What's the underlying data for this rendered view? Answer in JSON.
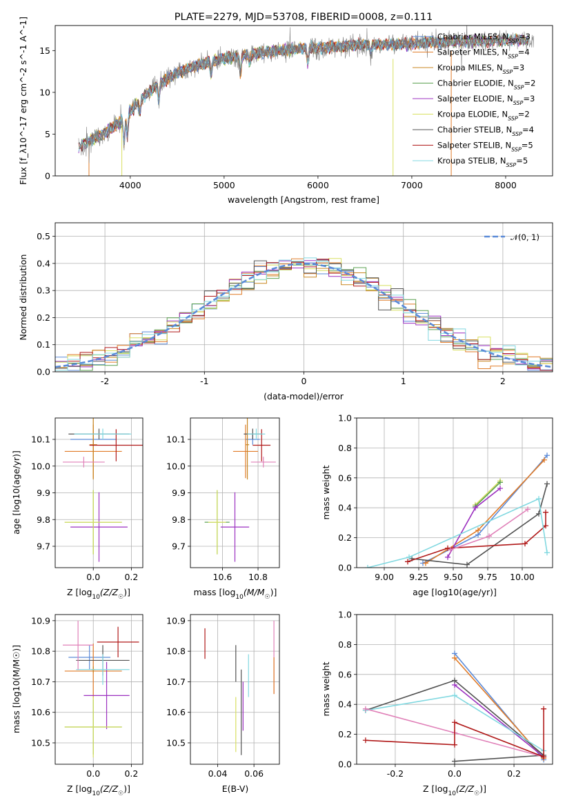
{
  "title": "PLATE=2279, MJD=53708, FIBERID=0008, z=0.111",
  "colors": {
    "chabrier_miles": "#5a8ad8",
    "salpeter_miles": "#e07a26",
    "kroupa_miles": "#c8861f",
    "chabrier_elodie": "#5aa050",
    "salpeter_elodie": "#9b2fc0",
    "kroupa_elodie": "#d8e060",
    "chabrier_stelib": "#505050",
    "salpeter_stelib": "#b01818",
    "kroupa_stelib": "#80d8e0",
    "data": "#808080",
    "pink": "#e080b8",
    "lime": "#80c030",
    "normal": "#5a8ad8"
  },
  "chart_data": [
    {
      "id": "spectrum",
      "type": "line",
      "xlabel": "wavelength [Angstrom, rest frame]",
      "ylabel": "Flux [f_λ10^-17 erg cm^-2 s^-1 A^-1]",
      "xlim": [
        3200,
        8500
      ],
      "ylim": [
        0,
        18
      ],
      "xticks": [
        4000,
        5000,
        6000,
        7000,
        8000
      ],
      "yticks": [
        0,
        5,
        10,
        15
      ],
      "legend_position": "upper-right",
      "legend": [
        {
          "label": "Chabrier MILES, N",
          "sub": "SSP",
          "suffix": "=3",
          "color": "chabrier_miles"
        },
        {
          "label": "Salpeter MILES, N",
          "sub": "SSP",
          "suffix": "=4",
          "color": "salpeter_miles"
        },
        {
          "label": "Kroupa MILES, N",
          "sub": "SSP",
          "suffix": "=3",
          "color": "kroupa_miles"
        },
        {
          "label": "Chabrier ELODIE, N",
          "sub": "SSP",
          "suffix": "=2",
          "color": "chabrier_elodie"
        },
        {
          "label": "Salpeter ELODIE, N",
          "sub": "SSP",
          "suffix": "=3",
          "color": "salpeter_elodie"
        },
        {
          "label": "Kroupa ELODIE, N",
          "sub": "SSP",
          "suffix": "=2",
          "color": "kroupa_elodie"
        },
        {
          "label": "Chabrier STELIB, N",
          "sub": "SSP",
          "suffix": "=4",
          "color": "chabrier_stelib"
        },
        {
          "label": "Salpeter STELIB, N",
          "sub": "SSP",
          "suffix": "=5",
          "color": "salpeter_stelib"
        },
        {
          "label": "Kroupa STELIB, N",
          "sub": "SSP",
          "suffix": "=5",
          "color": "kroupa_stelib"
        }
      ],
      "continuum": [
        [
          3450,
          3.5
        ],
        [
          3700,
          5.0
        ],
        [
          3900,
          6.5
        ],
        [
          4100,
          9.0
        ],
        [
          4300,
          11.0
        ],
        [
          4500,
          12.3
        ],
        [
          4700,
          13.2
        ],
        [
          4900,
          13.8
        ],
        [
          5100,
          14.3
        ],
        [
          5300,
          14.6
        ],
        [
          5500,
          14.9
        ],
        [
          5700,
          15.1
        ],
        [
          5900,
          15.3
        ],
        [
          6100,
          15.4
        ],
        [
          6300,
          15.6
        ],
        [
          6500,
          15.7
        ],
        [
          6700,
          15.7
        ],
        [
          6900,
          15.8
        ],
        [
          7100,
          15.9
        ],
        [
          7300,
          16.0
        ],
        [
          7500,
          16.1
        ],
        [
          7700,
          16.1
        ],
        [
          7900,
          16.2
        ],
        [
          8100,
          16.2
        ],
        [
          8300,
          16.3
        ]
      ]
    },
    {
      "id": "residuals",
      "type": "line",
      "xlabel": "(data-model)/error",
      "ylabel": "Normed distribution",
      "xlim": [
        -2.5,
        2.5
      ],
      "ylim": [
        0,
        0.55
      ],
      "xticks": [
        -2,
        -1,
        0,
        1,
        2
      ],
      "yticks": [
        0.0,
        0.1,
        0.2,
        0.3,
        0.4,
        0.5
      ],
      "legend_position": "upper-right",
      "normal_label": "𝒩(0, 1)",
      "bin_edges": [
        -2.5,
        2.5
      ],
      "bins": 40
    },
    {
      "id": "age_vs_Z",
      "type": "scatter",
      "xlabel_pre": "Z [log",
      "xlabel_sub": "10",
      "xlabel_post": "(Z/Z",
      "xlabel_sun": "☉",
      "xlabel_end": ")]",
      "ylabel": "age  [log10(age/yr)]",
      "xlim": [
        -0.2,
        0.26
      ],
      "ylim": [
        9.62,
        10.18
      ],
      "xticks": [
        0.0,
        0.2
      ],
      "yticks": [
        9.7,
        9.8,
        9.9,
        10.0,
        10.1
      ],
      "points": [
        {
          "x": 0.0,
          "xerr": 0.12,
          "y": 10.1,
          "yerr": 0.02,
          "color": "chabrier_miles"
        },
        {
          "x": 0.0,
          "xerr": 0.15,
          "y": 10.055,
          "yerr": 0.1,
          "color": "salpeter_miles"
        },
        {
          "x": 0.0,
          "xerr": 0.02,
          "y": 10.08,
          "yerr": 0.13,
          "color": "kroupa_miles"
        },
        {
          "x": 0.0,
          "xerr": 0.15,
          "y": 9.79,
          "yerr": 0.12,
          "color": "chabrier_elodie"
        },
        {
          "x": 0.03,
          "xerr": 0.15,
          "y": 9.772,
          "yerr": 0.13,
          "color": "salpeter_elodie"
        },
        {
          "x": 0.0,
          "xerr": 0.15,
          "y": 9.79,
          "yerr": 0.12,
          "color": "kroupa_elodie"
        },
        {
          "x": 0.03,
          "xerr": 0.16,
          "y": 10.12,
          "yerr": 0.02,
          "color": "chabrier_stelib"
        },
        {
          "x": 0.12,
          "xerr": 0.14,
          "y": 10.078,
          "yerr": 0.06,
          "color": "salpeter_stelib"
        },
        {
          "x": 0.05,
          "xerr": 0.15,
          "y": 10.12,
          "yerr": 0.02,
          "color": "kroupa_stelib"
        },
        {
          "x": -0.05,
          "xerr": 0.11,
          "y": 10.015,
          "yerr": 0.02,
          "color": "pink"
        }
      ]
    },
    {
      "id": "age_vs_mass",
      "type": "scatter",
      "xlabel_pre": "mass [log",
      "xlabel_sub": "10",
      "xlabel_post": "(M/M",
      "xlabel_sun": "☉",
      "xlabel_end": ")]",
      "xlim": [
        10.42,
        10.92
      ],
      "ylim": [
        9.62,
        10.18
      ],
      "xticks": [
        10.6,
        10.8
      ],
      "yticks": [
        9.7,
        9.8,
        9.9,
        10.0,
        10.1
      ],
      "points": [
        {
          "x": 10.77,
          "xerr": 0.04,
          "y": 10.1,
          "yerr": 0.02,
          "color": "chabrier_miles"
        },
        {
          "x": 10.73,
          "xerr": 0.07,
          "y": 10.055,
          "yerr": 0.1,
          "color": "salpeter_miles"
        },
        {
          "x": 10.74,
          "xerr": 0.01,
          "y": 10.08,
          "yerr": 0.13,
          "color": "kroupa_miles"
        },
        {
          "x": 10.57,
          "xerr": 0.07,
          "y": 9.79,
          "yerr": 0.12,
          "color": "chabrier_elodie"
        },
        {
          "x": 10.67,
          "xerr": 0.08,
          "y": 9.772,
          "yerr": 0.13,
          "color": "salpeter_elodie"
        },
        {
          "x": 10.57,
          "xerr": 0.05,
          "y": 9.79,
          "yerr": 0.12,
          "color": "kroupa_elodie"
        },
        {
          "x": 10.77,
          "xerr": 0.05,
          "y": 10.12,
          "yerr": 0.02,
          "color": "chabrier_stelib"
        },
        {
          "x": 10.82,
          "xerr": 0.05,
          "y": 10.078,
          "yerr": 0.06,
          "color": "salpeter_stelib"
        },
        {
          "x": 10.79,
          "xerr": 0.05,
          "y": 10.12,
          "yerr": 0.02,
          "color": "kroupa_stelib"
        },
        {
          "x": 10.83,
          "xerr": 0.07,
          "y": 10.015,
          "yerr": 0.02,
          "color": "pink"
        }
      ]
    },
    {
      "id": "weight_vs_age",
      "type": "line",
      "xlabel": "age  [log10(age/yr)]",
      "ylabel": "mass weight",
      "xlim": [
        8.8,
        10.22
      ],
      "ylim": [
        0.0,
        1.0
      ],
      "xticks": [
        9.0,
        9.25,
        9.5,
        9.75,
        10.0
      ],
      "yticks": [
        0.0,
        0.2,
        0.4,
        0.6,
        0.8,
        1.0
      ],
      "series": [
        {
          "color": "chabrier_miles",
          "points": [
            [
              9.28,
              0.03
            ],
            [
              9.68,
              0.22
            ],
            [
              10.18,
              0.75
            ]
          ]
        },
        {
          "color": "salpeter_miles",
          "points": [
            [
              9.3,
              0.03
            ],
            [
              9.68,
              0.25
            ],
            [
              10.16,
              0.72
            ]
          ]
        },
        {
          "color": "kroupa_elodie",
          "points": [
            [
              9.66,
              0.42
            ],
            [
              9.84,
              0.58
            ]
          ]
        },
        {
          "color": "chabrier_elodie",
          "points": [
            [
              9.66,
              0.41
            ],
            [
              9.84,
              0.57
            ]
          ]
        },
        {
          "color": "salpeter_elodie",
          "points": [
            [
              9.46,
              0.07
            ],
            [
              9.66,
              0.4
            ],
            [
              9.84,
              0.53
            ]
          ]
        },
        {
          "color": "chabrier_stelib",
          "points": [
            [
              9.2,
              0.06
            ],
            [
              9.6,
              0.02
            ],
            [
              10.12,
              0.36
            ],
            [
              10.18,
              0.56
            ]
          ]
        },
        {
          "color": "salpeter_stelib",
          "points": [
            [
              9.17,
              0.04
            ],
            [
              9.46,
              0.13
            ],
            [
              10.02,
              0.16
            ],
            [
              10.17,
              0.28
            ],
            [
              10.17,
              0.37
            ]
          ]
        },
        {
          "color": "kroupa_stelib",
          "points": [
            [
              8.88,
              0.0
            ],
            [
              9.18,
              0.07
            ],
            [
              10.12,
              0.46
            ],
            [
              10.18,
              0.1
            ]
          ]
        },
        {
          "color": "pink",
          "points": [
            [
              9.48,
              0.12
            ],
            [
              9.76,
              0.21
            ],
            [
              10.04,
              0.39
            ]
          ]
        }
      ]
    },
    {
      "id": "mass_vs_Z",
      "type": "scatter",
      "xlabel_pre": "Z [log",
      "xlabel_sub": "10",
      "xlabel_post": "(Z/Z",
      "xlabel_sun": "☉",
      "xlabel_end": ")]",
      "ylabel": "mass [log10(M/M☉)]",
      "xlim": [
        -0.2,
        0.26
      ],
      "ylim": [
        10.43,
        10.92
      ],
      "xticks": [
        0.0,
        0.2
      ],
      "yticks": [
        10.5,
        10.6,
        10.7,
        10.8,
        10.9
      ],
      "points": [
        {
          "x": -0.02,
          "xerr": 0.11,
          "y": 10.78,
          "yerr": 0.04,
          "color": "chabrier_miles"
        },
        {
          "x": 0.0,
          "xerr": 0.15,
          "y": 10.735,
          "yerr": 0.09,
          "color": "salpeter_miles"
        },
        {
          "x": 0.0,
          "xerr": 0.01,
          "y": 10.74,
          "yerr": 0.01,
          "color": "kroupa_miles"
        },
        {
          "x": 0.0,
          "xerr": 0.15,
          "y": 10.552,
          "yerr": 0.09,
          "color": "chabrier_elodie"
        },
        {
          "x": 0.07,
          "xerr": 0.12,
          "y": 10.655,
          "yerr": 0.11,
          "color": "salpeter_elodie"
        },
        {
          "x": 0.0,
          "xerr": 0.15,
          "y": 10.552,
          "yerr": 0.1,
          "color": "kroupa_elodie"
        },
        {
          "x": 0.05,
          "xerr": 0.14,
          "y": 10.77,
          "yerr": 0.05,
          "color": "chabrier_stelib"
        },
        {
          "x": 0.13,
          "xerr": 0.11,
          "y": 10.83,
          "yerr": 0.05,
          "color": "salpeter_stelib"
        },
        {
          "x": 0.05,
          "xerr": 0.14,
          "y": 10.74,
          "yerr": 0.05,
          "color": "kroupa_stelib"
        },
        {
          "x": -0.08,
          "xerr": 0.08,
          "y": 10.82,
          "yerr": 0.08,
          "color": "pink"
        }
      ]
    },
    {
      "id": "mass_vs_ebv",
      "type": "scatter",
      "xlabel": "E(B-V)",
      "xlim": [
        0.025,
        0.074
      ],
      "ylim": [
        10.43,
        10.92
      ],
      "xticks": [
        0.04,
        0.06
      ],
      "yticks": [
        10.5,
        10.6,
        10.7,
        10.8,
        10.9
      ],
      "points": [
        {
          "x": 0.033,
          "y": 10.825,
          "yerr": 0.05,
          "color": "salpeter_stelib"
        },
        {
          "x": 0.05,
          "y": 10.76,
          "yerr": 0.06,
          "color": "chabrier_stelib"
        },
        {
          "x": 0.05,
          "y": 10.56,
          "yerr": 0.09,
          "color": "kroupa_elodie"
        },
        {
          "x": 0.053,
          "y": 10.6,
          "yerr": 0.14,
          "color": "chabrier_stelib"
        },
        {
          "x": 0.054,
          "y": 10.62,
          "yerr": 0.08,
          "color": "salpeter_elodie"
        },
        {
          "x": 0.057,
          "y": 10.72,
          "yerr": 0.07,
          "color": "kroupa_stelib"
        },
        {
          "x": 0.071,
          "y": 10.78,
          "yerr": 0.12,
          "color": "pink"
        },
        {
          "x": 0.071,
          "y": 10.72,
          "yerr": 0.06,
          "color": "salpeter_miles"
        }
      ]
    },
    {
      "id": "weight_vs_Z",
      "type": "line",
      "xlabel_pre": "Z [log",
      "xlabel_sub": "10",
      "xlabel_post": "(Z/Z",
      "xlabel_sun": "☉",
      "xlabel_end": ")]",
      "ylabel": "mass weight",
      "xlim": [
        -0.33,
        0.33
      ],
      "ylim": [
        0.0,
        1.0
      ],
      "xticks": [
        -0.2,
        0.0,
        0.2
      ],
      "yticks": [
        0.0,
        0.2,
        0.4,
        0.6,
        0.8,
        1.0
      ],
      "series": [
        {
          "color": "chabrier_miles",
          "points": [
            [
              0.0,
              0.74
            ],
            [
              0.3,
              0.03
            ]
          ]
        },
        {
          "color": "salpeter_miles",
          "points": [
            [
              0.0,
              0.71
            ],
            [
              0.3,
              0.04
            ]
          ]
        },
        {
          "color": "salpeter_elodie",
          "points": [
            [
              0.0,
              0.53
            ],
            [
              0.3,
              0.05
            ]
          ]
        },
        {
          "color": "chabrier_stelib",
          "points": [
            [
              -0.3,
              0.36
            ],
            [
              0.0,
              0.56
            ],
            [
              0.3,
              0.06
            ],
            [
              0.0,
              0.02
            ]
          ]
        },
        {
          "color": "kroupa_stelib",
          "points": [
            [
              -0.3,
              0.36
            ],
            [
              0.0,
              0.46
            ],
            [
              0.3,
              0.09
            ]
          ]
        },
        {
          "color": "pink",
          "points": [
            [
              -0.3,
              0.37
            ],
            [
              0.0,
              0.21
            ],
            [
              0.3,
              0.05
            ]
          ]
        },
        {
          "color": "salpeter_stelib",
          "points": [
            [
              -0.3,
              0.16
            ],
            [
              0.0,
              0.13
            ],
            [
              0.0,
              0.28
            ],
            [
              0.3,
              0.05
            ],
            [
              0.3,
              0.37
            ]
          ]
        }
      ]
    }
  ]
}
